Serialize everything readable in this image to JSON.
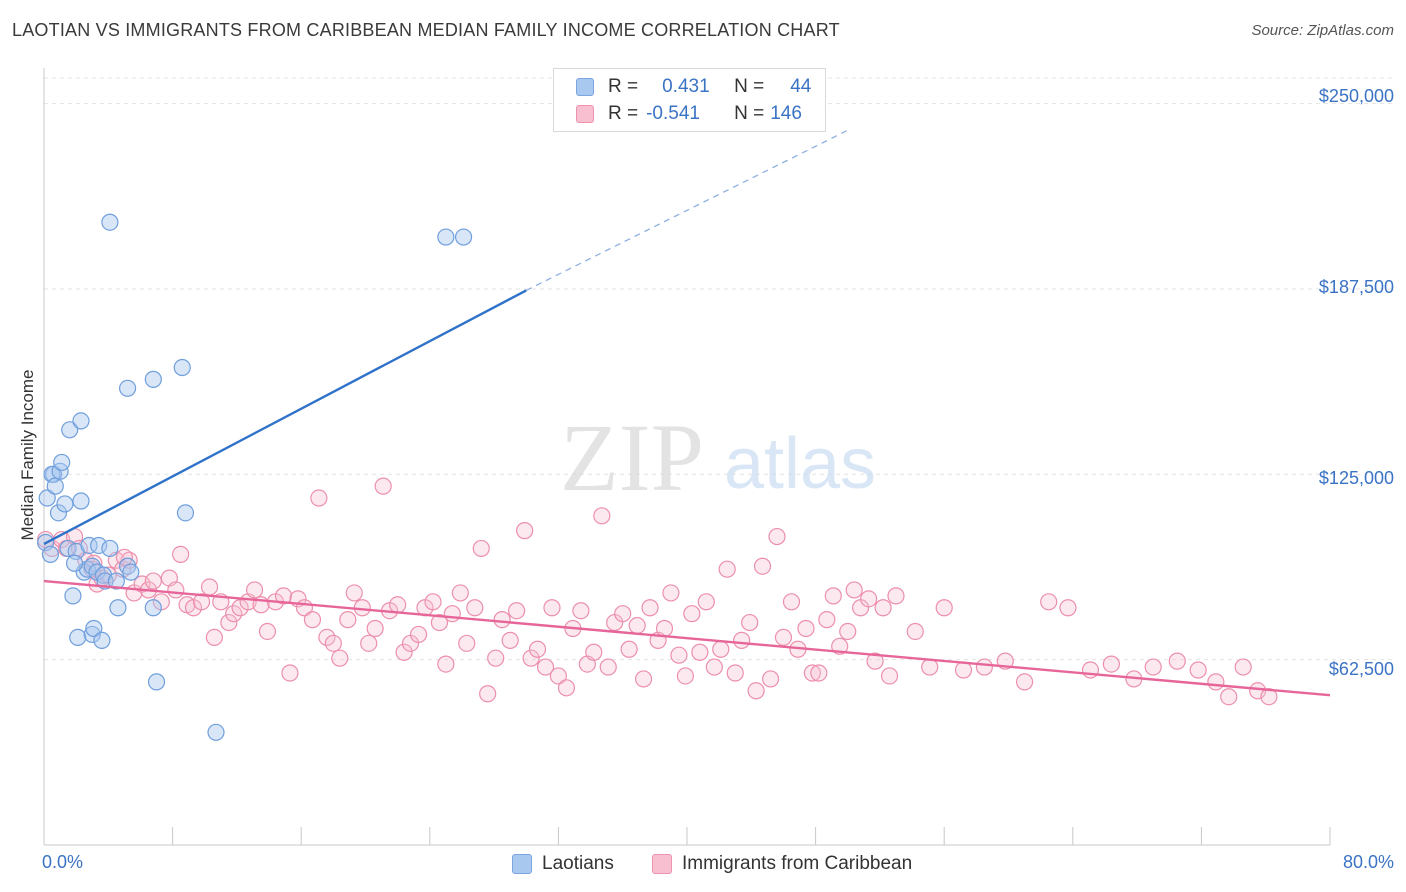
{
  "header": {
    "title": "LAOTIAN VS IMMIGRANTS FROM CARIBBEAN MEDIAN FAMILY INCOME CORRELATION CHART",
    "source": "Source: ZipAtlas.com"
  },
  "watermark": {
    "zip": "ZIP",
    "atlas": "atlas"
  },
  "legend": {
    "rows": [
      {
        "r_label": "R =",
        "r_value": "0.431",
        "n_label": "N =",
        "n_value": "44",
        "color": "#a9c8f0",
        "border": "#7aa6e0"
      },
      {
        "r_label": "R =",
        "r_value": "-0.541",
        "n_label": "N =",
        "n_value": "146",
        "color": "#f7bfd0",
        "border": "#ee93ae"
      }
    ]
  },
  "bottom_legend": [
    {
      "label": "Laotians",
      "color": "#a9c8f0",
      "border": "#7aa6e0"
    },
    {
      "label": "Immigrants from Caribbean",
      "color": "#f7bfd0",
      "border": "#ee93ae"
    }
  ],
  "colors": {
    "blue_line": "#2f72c9",
    "pink_line": "#e7669a",
    "blue_fill": "rgba(169,200,240,0.45)",
    "blue_stroke": "#6f9fdc",
    "pink_fill": "rgba(247,191,208,0.35)",
    "pink_stroke": "#ec8fac",
    "grid": "#e3e3e3",
    "axis_label": "#3b73c4"
  },
  "chart_data": {
    "type": "scatter",
    "title": "LAOTIAN VS IMMIGRANTS FROM CARIBBEAN MEDIAN FAMILY INCOME CORRELATION CHART",
    "xlabel": "",
    "ylabel": "Median Family Income",
    "xlim": [
      0,
      80
    ],
    "ylim": [
      0,
      262000
    ],
    "x_tick_labels": [
      "0.0%",
      "80.0%"
    ],
    "y_ticks": [
      62500,
      125000,
      187500,
      250000
    ],
    "y_tick_labels": [
      "$62,500",
      "$125,000",
      "$187,500",
      "$250,000"
    ],
    "grid": true,
    "legend_position": "top-center",
    "series": [
      {
        "name": "Laotians",
        "r": 0.431,
        "n": 44,
        "trend": {
          "x": [
            0,
            30
          ],
          "y": [
            101500,
            187000
          ],
          "dashed_to": [
            50,
            241000
          ]
        },
        "points": [
          [
            0.2,
            117000
          ],
          [
            0.1,
            102000
          ],
          [
            0.4,
            98000
          ],
          [
            0.6,
            125000
          ],
          [
            0.5,
            125000
          ],
          [
            0.7,
            121000
          ],
          [
            1.0,
            126000
          ],
          [
            1.1,
            129000
          ],
          [
            0.9,
            112000
          ],
          [
            1.3,
            115000
          ],
          [
            1.6,
            140000
          ],
          [
            2.3,
            143000
          ],
          [
            2.3,
            116000
          ],
          [
            1.5,
            100000
          ],
          [
            2.0,
            99000
          ],
          [
            2.5,
            92000
          ],
          [
            2.7,
            93000
          ],
          [
            3.0,
            94000
          ],
          [
            2.8,
            101000
          ],
          [
            3.3,
            92000
          ],
          [
            3.7,
            91000
          ],
          [
            3.4,
            101000
          ],
          [
            4.1,
            100000
          ],
          [
            3.8,
            89000
          ],
          [
            4.5,
            89000
          ],
          [
            5.2,
            94000
          ],
          [
            5.4,
            92000
          ],
          [
            1.8,
            84000
          ],
          [
            4.6,
            80000
          ],
          [
            6.8,
            80000
          ],
          [
            2.1,
            70000
          ],
          [
            3.0,
            71000
          ],
          [
            3.1,
            73000
          ],
          [
            3.6,
            69000
          ],
          [
            7.0,
            55000
          ],
          [
            10.7,
            38000
          ],
          [
            8.6,
            161000
          ],
          [
            6.8,
            157000
          ],
          [
            5.2,
            154000
          ],
          [
            4.1,
            210000
          ],
          [
            8.8,
            112000
          ],
          [
            25.0,
            205000
          ],
          [
            26.1,
            205000
          ],
          [
            1.9,
            95000
          ]
        ]
      },
      {
        "name": "Immigrants from Caribbean",
        "r": -0.541,
        "n": 146,
        "trend": {
          "x": [
            0,
            80
          ],
          "y": [
            89000,
            50500
          ]
        },
        "points": [
          [
            0.1,
            103000
          ],
          [
            0.5,
            100000
          ],
          [
            1.1,
            103000
          ],
          [
            1.4,
            100000
          ],
          [
            1.9,
            104000
          ],
          [
            2.2,
            100000
          ],
          [
            2.6,
            96000
          ],
          [
            3.0,
            93000
          ],
          [
            3.3,
            88000
          ],
          [
            3.6,
            90000
          ],
          [
            4.0,
            91000
          ],
          [
            4.5,
            96000
          ],
          [
            4.9,
            93000
          ],
          [
            5.3,
            96000
          ],
          [
            5.6,
            85000
          ],
          [
            6.1,
            88000
          ],
          [
            6.5,
            86000
          ],
          [
            6.8,
            89000
          ],
          [
            7.3,
            82000
          ],
          [
            7.8,
            90000
          ],
          [
            8.2,
            86000
          ],
          [
            8.5,
            98000
          ],
          [
            8.9,
            81000
          ],
          [
            9.3,
            80000
          ],
          [
            9.8,
            82000
          ],
          [
            10.3,
            87000
          ],
          [
            10.6,
            70000
          ],
          [
            11.0,
            82000
          ],
          [
            11.5,
            75000
          ],
          [
            11.8,
            78000
          ],
          [
            12.2,
            80000
          ],
          [
            12.7,
            82000
          ],
          [
            13.1,
            86000
          ],
          [
            13.5,
            81000
          ],
          [
            13.9,
            72000
          ],
          [
            14.4,
            82000
          ],
          [
            14.9,
            84000
          ],
          [
            15.3,
            58000
          ],
          [
            15.8,
            83000
          ],
          [
            16.2,
            80000
          ],
          [
            16.7,
            76000
          ],
          [
            17.1,
            117000
          ],
          [
            17.6,
            70000
          ],
          [
            18.0,
            68000
          ],
          [
            18.4,
            63000
          ],
          [
            18.9,
            76000
          ],
          [
            19.3,
            85000
          ],
          [
            19.8,
            80000
          ],
          [
            20.2,
            68000
          ],
          [
            20.6,
            73000
          ],
          [
            21.1,
            121000
          ],
          [
            21.5,
            79000
          ],
          [
            22.0,
            81000
          ],
          [
            22.4,
            65000
          ],
          [
            22.8,
            68000
          ],
          [
            23.3,
            71000
          ],
          [
            23.7,
            80000
          ],
          [
            24.2,
            82000
          ],
          [
            24.6,
            75000
          ],
          [
            25.0,
            61000
          ],
          [
            25.4,
            78000
          ],
          [
            25.9,
            85000
          ],
          [
            26.3,
            68000
          ],
          [
            26.8,
            80000
          ],
          [
            27.2,
            100000
          ],
          [
            27.6,
            51000
          ],
          [
            28.1,
            63000
          ],
          [
            28.5,
            76000
          ],
          [
            29.0,
            69000
          ],
          [
            29.4,
            79000
          ],
          [
            29.9,
            106000
          ],
          [
            30.3,
            63000
          ],
          [
            30.7,
            66000
          ],
          [
            31.2,
            60000
          ],
          [
            31.6,
            80000
          ],
          [
            32.0,
            57000
          ],
          [
            32.5,
            53000
          ],
          [
            32.9,
            73000
          ],
          [
            33.4,
            79000
          ],
          [
            33.8,
            61000
          ],
          [
            34.2,
            65000
          ],
          [
            34.7,
            111000
          ],
          [
            35.1,
            60000
          ],
          [
            35.5,
            75000
          ],
          [
            36.0,
            78000
          ],
          [
            36.4,
            66000
          ],
          [
            36.9,
            74000
          ],
          [
            37.3,
            56000
          ],
          [
            37.7,
            80000
          ],
          [
            38.2,
            69000
          ],
          [
            38.6,
            73000
          ],
          [
            39.0,
            85000
          ],
          [
            39.5,
            64000
          ],
          [
            39.9,
            57000
          ],
          [
            40.3,
            78000
          ],
          [
            40.8,
            65000
          ],
          [
            41.2,
            82000
          ],
          [
            41.7,
            60000
          ],
          [
            42.1,
            66000
          ],
          [
            42.5,
            93000
          ],
          [
            43.0,
            58000
          ],
          [
            43.4,
            69000
          ],
          [
            43.9,
            75000
          ],
          [
            44.3,
            52000
          ],
          [
            44.7,
            94000
          ],
          [
            45.2,
            56000
          ],
          [
            45.6,
            104000
          ],
          [
            46.0,
            70000
          ],
          [
            46.5,
            82000
          ],
          [
            46.9,
            66000
          ],
          [
            47.4,
            73000
          ],
          [
            47.8,
            58000
          ],
          [
            48.2,
            58000
          ],
          [
            48.7,
            76000
          ],
          [
            49.1,
            84000
          ],
          [
            49.5,
            67000
          ],
          [
            50.0,
            72000
          ],
          [
            50.4,
            86000
          ],
          [
            50.8,
            80000
          ],
          [
            51.3,
            83000
          ],
          [
            51.7,
            62000
          ],
          [
            52.2,
            80000
          ],
          [
            52.6,
            57000
          ],
          [
            53.0,
            84000
          ],
          [
            54.2,
            72000
          ],
          [
            55.1,
            60000
          ],
          [
            56.0,
            80000
          ],
          [
            57.2,
            59000
          ],
          [
            58.5,
            60000
          ],
          [
            59.8,
            62000
          ],
          [
            61.0,
            55000
          ],
          [
            62.5,
            82000
          ],
          [
            63.7,
            80000
          ],
          [
            65.1,
            59000
          ],
          [
            66.4,
            61000
          ],
          [
            67.8,
            56000
          ],
          [
            69.0,
            60000
          ],
          [
            70.5,
            62000
          ],
          [
            71.8,
            59000
          ],
          [
            72.9,
            55000
          ],
          [
            73.7,
            50000
          ],
          [
            74.6,
            60000
          ],
          [
            75.5,
            52000
          ],
          [
            76.2,
            50000
          ],
          [
            5.0,
            97000
          ],
          [
            3.1,
            95000
          ]
        ]
      }
    ]
  }
}
